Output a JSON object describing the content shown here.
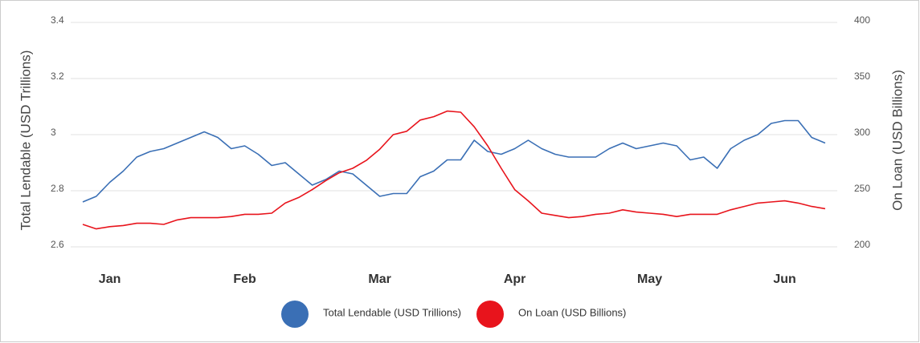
{
  "chart_data": {
    "type": "line",
    "y_label": "Total Lendable (USD Trillions)",
    "y2_label": "On Loan (USD Billions)",
    "categories": [
      null,
      null,
      "Jan",
      null,
      null,
      null,
      null,
      null,
      null,
      null,
      null,
      null,
      "Feb",
      null,
      null,
      null,
      null,
      null,
      null,
      null,
      null,
      null,
      "Mar",
      null,
      null,
      null,
      null,
      null,
      null,
      null,
      null,
      null,
      "Apr",
      null,
      null,
      null,
      null,
      null,
      null,
      null,
      null,
      null,
      "May",
      null,
      null,
      null,
      null,
      null,
      null,
      null,
      null,
      null,
      "Jun",
      null,
      null,
      null
    ],
    "series": [
      {
        "name": "Total Lendable (USD Trillions)",
        "color": "#3a6fb5",
        "axis": "y",
        "values": [
          2.76,
          2.78,
          2.83,
          2.87,
          2.92,
          2.94,
          2.95,
          2.97,
          2.99,
          3.01,
          2.99,
          2.95,
          2.96,
          2.93,
          2.89,
          2.9,
          2.86,
          2.82,
          2.84,
          2.87,
          2.86,
          2.82,
          2.78,
          2.79,
          2.79,
          2.85,
          2.87,
          2.91,
          2.91,
          2.98,
          2.94,
          2.93,
          2.95,
          2.98,
          2.95,
          2.93,
          2.92,
          2.92,
          2.92,
          2.95,
          2.97,
          2.95,
          2.96,
          2.97,
          2.96,
          2.91,
          2.92,
          2.88,
          2.95,
          2.98,
          3.0,
          3.04,
          3.05,
          3.05,
          2.99,
          2.97
        ]
      },
      {
        "name": "On Loan (USD Billions)",
        "color": "#e8141c",
        "axis": "y2",
        "values": [
          220,
          216,
          218,
          219,
          221,
          221,
          220,
          224,
          226,
          226,
          226,
          227,
          229,
          229,
          230,
          239,
          244,
          251,
          259,
          266,
          270,
          277,
          287,
          300,
          303,
          313,
          316,
          321,
          320,
          307,
          290,
          270,
          251,
          241,
          230,
          228,
          226,
          227,
          229,
          230,
          233,
          231,
          230,
          229,
          227,
          229,
          229,
          229,
          233,
          236,
          239,
          240,
          241,
          239,
          236,
          234
        ]
      }
    ],
    "ylim": [
      2.6,
      3.4
    ],
    "yticks": [
      2.6,
      2.8,
      3,
      3.2,
      3.4
    ],
    "y2lim": [
      200,
      400
    ],
    "y2ticks": [
      200,
      250,
      300,
      350,
      400
    ],
    "grid": true,
    "legend": "bottom"
  }
}
